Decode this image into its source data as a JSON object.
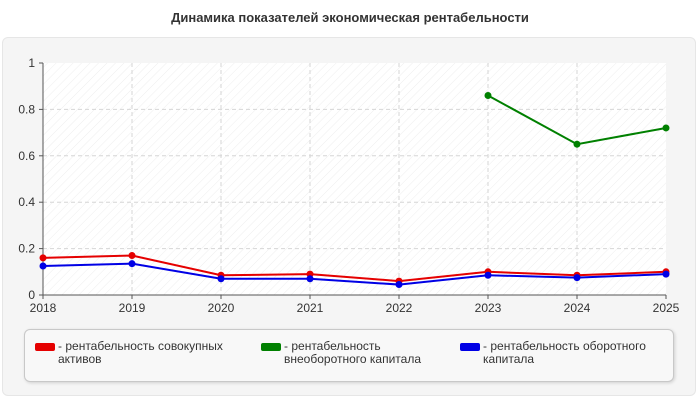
{
  "chart_data": {
    "type": "line",
    "title": "Динамика показателей экономическая рентабельности",
    "xlabel": "",
    "ylabel": "",
    "x": [
      "2018",
      "2019",
      "2020",
      "2021",
      "2022",
      "2023",
      "2024",
      "2025"
    ],
    "ylim": [
      0,
      1
    ],
    "yticks": [
      "0",
      "0.2",
      "0.4",
      "0.6",
      "0.8",
      "1"
    ],
    "grid": true,
    "legend_position": "bottom",
    "series": [
      {
        "name": "рентабельность совокупных активов",
        "color": "#e50000",
        "values": [
          0.16,
          0.17,
          0.085,
          0.09,
          0.06,
          0.1,
          0.085,
          0.1
        ]
      },
      {
        "name": "рентабельность внеоборотного капитала",
        "color": "#008000",
        "values": [
          null,
          null,
          null,
          null,
          null,
          0.86,
          0.65,
          0.72
        ]
      },
      {
        "name": "рентабельность оборотного капитала",
        "color": "#0000e5",
        "values": [
          0.125,
          0.135,
          0.07,
          0.07,
          0.045,
          0.085,
          0.075,
          0.09
        ]
      }
    ]
  },
  "legend": {
    "items": [
      {
        "prefix": "- ",
        "lines": [
          "рентабельность совокупных",
          "активов"
        ]
      },
      {
        "prefix": "- ",
        "lines": [
          "рентабельность",
          "внеоборотного капитала"
        ]
      },
      {
        "prefix": "- ",
        "lines": [
          "рентабельность оборотного",
          "капитала"
        ]
      }
    ]
  }
}
